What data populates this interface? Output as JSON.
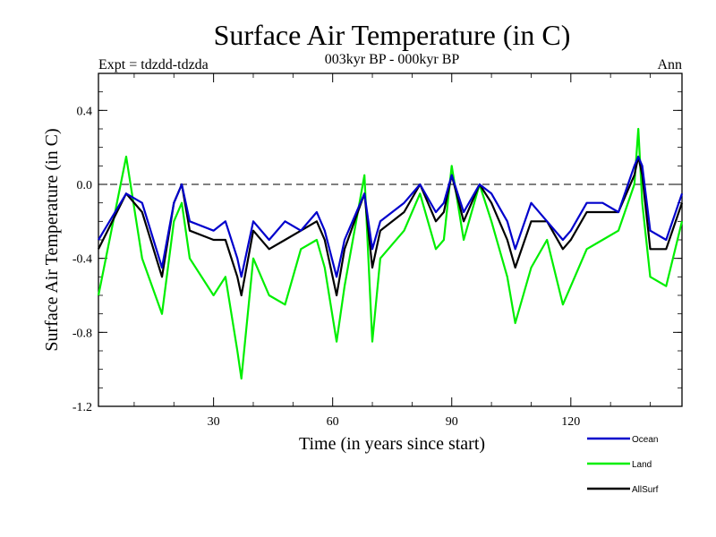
{
  "chart_data": {
    "type": "line",
    "title": "Surface Air Temperature (in C)",
    "subtitle": "003kyr BP - 000kyr BP",
    "left_annotation": "Expt = tdzdd-tdzda",
    "right_annotation": "Ann",
    "xlabel": "Time (in years since start)",
    "ylabel": "Surface Air Temperature (in C)",
    "xlim": [
      1,
      148
    ],
    "ylim": [
      -1.2,
      0.6
    ],
    "xticks": [
      30,
      60,
      90,
      120
    ],
    "yticks": [
      0.4,
      0.0,
      -0.4,
      -0.8,
      -1.2
    ],
    "ytick_labels": [
      "0.4",
      "0.0",
      "-0.4",
      "-0.8",
      "-1.2"
    ],
    "reference_line": 0.0,
    "x": [
      1,
      8,
      12,
      17,
      20,
      22,
      24,
      30,
      33,
      36,
      37,
      40,
      44,
      48,
      52,
      56,
      58,
      61,
      63,
      68,
      70,
      72,
      78,
      82,
      86,
      88,
      90,
      93,
      97,
      100,
      104,
      106,
      110,
      114,
      118,
      120,
      124,
      128,
      132,
      136,
      137,
      138,
      140,
      144,
      148
    ],
    "series": [
      {
        "name": "Ocean",
        "color": "#0000cc",
        "values": [
          -0.3,
          -0.05,
          -0.1,
          -0.45,
          -0.1,
          0.0,
          -0.2,
          -0.25,
          -0.2,
          -0.4,
          -0.5,
          -0.2,
          -0.3,
          -0.2,
          -0.25,
          -0.15,
          -0.25,
          -0.5,
          -0.3,
          -0.05,
          -0.35,
          -0.2,
          -0.1,
          0.0,
          -0.15,
          -0.1,
          0.05,
          -0.15,
          0.0,
          -0.05,
          -0.2,
          -0.35,
          -0.1,
          -0.2,
          -0.3,
          -0.25,
          -0.1,
          -0.1,
          -0.15,
          0.1,
          0.15,
          0.1,
          -0.25,
          -0.3,
          -0.05
        ]
      },
      {
        "name": "Land",
        "color": "#00ee00",
        "values": [
          -0.6,
          0.15,
          -0.4,
          -0.7,
          -0.2,
          -0.1,
          -0.4,
          -0.6,
          -0.5,
          -0.9,
          -1.05,
          -0.4,
          -0.6,
          -0.65,
          -0.35,
          -0.3,
          -0.45,
          -0.85,
          -0.55,
          0.05,
          -0.85,
          -0.4,
          -0.25,
          -0.05,
          -0.35,
          -0.3,
          0.1,
          -0.3,
          0.0,
          -0.2,
          -0.5,
          -0.75,
          -0.45,
          -0.3,
          -0.65,
          -0.55,
          -0.35,
          -0.3,
          -0.25,
          0.0,
          0.3,
          -0.1,
          -0.5,
          -0.55,
          -0.2
        ]
      },
      {
        "name": "AllSurf",
        "color": "#000000",
        "values": [
          -0.35,
          -0.05,
          -0.15,
          -0.5,
          -0.1,
          0.0,
          -0.25,
          -0.3,
          -0.3,
          -0.5,
          -0.6,
          -0.25,
          -0.35,
          -0.3,
          -0.25,
          -0.2,
          -0.3,
          -0.6,
          -0.35,
          -0.05,
          -0.45,
          -0.25,
          -0.15,
          0.0,
          -0.2,
          -0.15,
          0.05,
          -0.2,
          0.0,
          -0.1,
          -0.3,
          -0.45,
          -0.2,
          -0.2,
          -0.35,
          -0.3,
          -0.15,
          -0.15,
          -0.15,
          0.05,
          0.15,
          0.05,
          -0.35,
          -0.35,
          -0.1
        ]
      }
    ],
    "legend": [
      "Ocean",
      "Land",
      "AllSurf"
    ],
    "legend_position": "bottom-right"
  }
}
